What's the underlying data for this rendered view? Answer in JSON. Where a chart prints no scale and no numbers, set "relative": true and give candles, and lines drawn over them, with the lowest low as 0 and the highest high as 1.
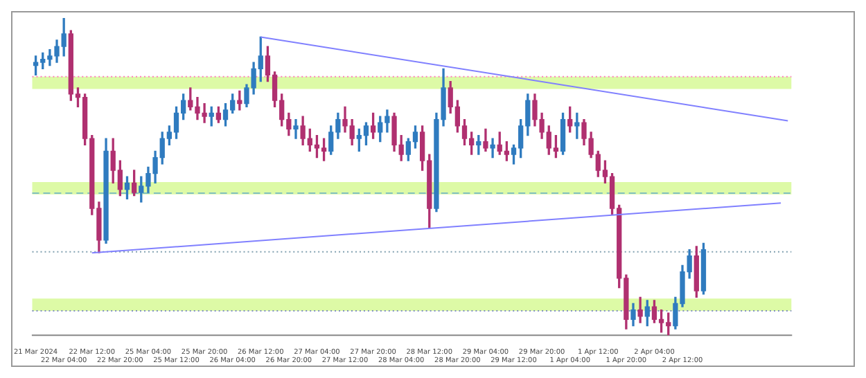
{
  "chart_data": {
    "type": "candlestick",
    "relative": true,
    "categories": [
      "21 Mar 2024",
      null,
      null,
      null,
      "22 Mar 04:00",
      null,
      null,
      null,
      "22 Mar 12:00",
      null,
      null,
      null,
      "22 Mar 20:00",
      null,
      null,
      null,
      "25 Mar 04:00",
      null,
      null,
      null,
      "25 Mar 12:00",
      null,
      null,
      null,
      "25 Mar 20:00",
      null,
      null,
      null,
      "26 Mar 04:00",
      null,
      null,
      null,
      "26 Mar 12:00",
      null,
      null,
      null,
      "26 Mar 20:00",
      null,
      null,
      null,
      "27 Mar 04:00",
      null,
      null,
      null,
      "27 Mar 12:00",
      null,
      null,
      null,
      "27 Mar 20:00",
      null,
      null,
      null,
      "28 Mar 04:00",
      null,
      null,
      null,
      "28 Mar 12:00",
      null,
      null,
      null,
      "28 Mar 20:00",
      null,
      null,
      null,
      "29 Mar 04:00",
      null,
      null,
      null,
      "29 Mar 12:00",
      null,
      null,
      null,
      "29 Mar 20:00",
      null,
      null,
      null,
      "1 Apr 04:00",
      null,
      null,
      null,
      "1 Apr 12:00",
      null,
      null,
      null,
      "1 Apr 20:00",
      null,
      null,
      null,
      "2 Apr 04:00",
      null,
      null,
      null,
      "2 Apr 12:00",
      null,
      null,
      null,
      null,
      null,
      null,
      null,
      null,
      null,
      null,
      null,
      null,
      null,
      null,
      null
    ],
    "colors": [
      "#2f7bbf",
      "#2f7bbf",
      "#2f7bbf",
      "#2f7bbf",
      "#2f7bbf",
      "#b03070",
      "#b03070",
      "#b03070",
      "#b03070",
      "#b03070",
      "#2f7bbf",
      "#b03070",
      "#b03070",
      "#2f7bbf",
      "#b03070",
      "#2f7bbf",
      "#2f7bbf",
      "#2f7bbf",
      "#2f7bbf",
      "#2f7bbf",
      "#2f7bbf",
      "#2f7bbf",
      "#b03070",
      "#b03070",
      "#b03070",
      "#2f7bbf",
      "#b03070",
      "#2f7bbf",
      "#2f7bbf",
      "#b03070",
      "#2f7bbf",
      "#2f7bbf",
      "#2f7bbf",
      "#b03070",
      "#b03070",
      "#b03070",
      "#b03070",
      "#2f7bbf",
      "#b03070",
      "#b03070",
      "#b03070",
      "#b03070",
      "#2f7bbf",
      "#2f7bbf",
      "#b03070",
      "#b03070",
      "#2f7bbf",
      "#2f7bbf",
      "#b03070",
      "#2f7bbf",
      "#2f7bbf",
      "#b03070",
      "#b03070",
      "#2f7bbf",
      "#2f7bbf",
      "#b03070",
      "#b03070",
      "#2f7bbf",
      "#2f7bbf",
      "#b03070",
      "#b03070",
      "#b03070",
      "#b03070",
      "#2f7bbf",
      "#b03070",
      "#2f7bbf",
      "#b03070",
      "#b03070",
      "#2f7bbf",
      "#2f7bbf",
      "#2f7bbf",
      "#b03070",
      "#b03070",
      "#b03070",
      "#b03070",
      "#2f7bbf",
      "#b03070",
      "#2f7bbf",
      "#b03070",
      "#b03070",
      "#b03070",
      "#b03070",
      "#b03070",
      "#b03070",
      "#b03070",
      "#2f7bbf",
      "#b03070",
      "#2f7bbf",
      "#b03070",
      "#b03070",
      "#b03070",
      "#2f7bbf",
      "#2f7bbf",
      "#2f7bbf",
      "#b03070",
      "#2f7bbf",
      null,
      null,
      null,
      null,
      null,
      null,
      null,
      null,
      null,
      null,
      null,
      null
    ],
    "ohlc": [
      [
        0.85,
        0.88,
        0.82,
        0.86
      ],
      [
        0.86,
        0.89,
        0.84,
        0.87
      ],
      [
        0.87,
        0.9,
        0.85,
        0.88
      ],
      [
        0.88,
        0.93,
        0.86,
        0.91
      ],
      [
        0.91,
        1.0,
        0.88,
        0.95
      ],
      [
        0.95,
        0.96,
        0.74,
        0.76
      ],
      [
        0.76,
        0.78,
        0.72,
        0.75
      ],
      [
        0.75,
        0.76,
        0.6,
        0.62
      ],
      [
        0.62,
        0.63,
        0.38,
        0.4
      ],
      [
        0.4,
        0.42,
        0.26,
        0.3
      ],
      [
        0.3,
        0.62,
        0.29,
        0.58
      ],
      [
        0.58,
        0.62,
        0.48,
        0.52
      ],
      [
        0.52,
        0.55,
        0.44,
        0.46
      ],
      [
        0.46,
        0.5,
        0.43,
        0.48
      ],
      [
        0.48,
        0.52,
        0.44,
        0.45
      ],
      [
        0.45,
        0.5,
        0.42,
        0.47
      ],
      [
        0.47,
        0.53,
        0.45,
        0.51
      ],
      [
        0.51,
        0.58,
        0.48,
        0.56
      ],
      [
        0.56,
        0.64,
        0.54,
        0.62
      ],
      [
        0.62,
        0.66,
        0.6,
        0.64
      ],
      [
        0.64,
        0.72,
        0.62,
        0.7
      ],
      [
        0.7,
        0.76,
        0.68,
        0.74
      ],
      [
        0.74,
        0.78,
        0.71,
        0.72
      ],
      [
        0.72,
        0.75,
        0.68,
        0.7
      ],
      [
        0.7,
        0.73,
        0.67,
        0.69
      ],
      [
        0.69,
        0.72,
        0.66,
        0.7
      ],
      [
        0.7,
        0.72,
        0.67,
        0.68
      ],
      [
        0.68,
        0.73,
        0.66,
        0.71
      ],
      [
        0.71,
        0.76,
        0.7,
        0.74
      ],
      [
        0.74,
        0.77,
        0.71,
        0.73
      ],
      [
        0.73,
        0.79,
        0.72,
        0.78
      ],
      [
        0.78,
        0.86,
        0.76,
        0.84
      ],
      [
        0.84,
        0.94,
        0.8,
        0.88
      ],
      [
        0.88,
        0.91,
        0.8,
        0.82
      ],
      [
        0.82,
        0.83,
        0.72,
        0.74
      ],
      [
        0.74,
        0.76,
        0.66,
        0.68
      ],
      [
        0.68,
        0.7,
        0.63,
        0.65
      ],
      [
        0.65,
        0.68,
        0.62,
        0.66
      ],
      [
        0.66,
        0.69,
        0.6,
        0.62
      ],
      [
        0.62,
        0.65,
        0.58,
        0.6
      ],
      [
        0.6,
        0.63,
        0.56,
        0.59
      ],
      [
        0.59,
        0.62,
        0.55,
        0.58
      ],
      [
        0.58,
        0.66,
        0.57,
        0.64
      ],
      [
        0.64,
        0.7,
        0.62,
        0.68
      ],
      [
        0.68,
        0.72,
        0.64,
        0.66
      ],
      [
        0.66,
        0.68,
        0.6,
        0.62
      ],
      [
        0.62,
        0.65,
        0.58,
        0.63
      ],
      [
        0.63,
        0.67,
        0.6,
        0.66
      ],
      [
        0.66,
        0.7,
        0.62,
        0.64
      ],
      [
        0.64,
        0.69,
        0.61,
        0.67
      ],
      [
        0.67,
        0.71,
        0.64,
        0.69
      ],
      [
        0.69,
        0.7,
        0.58,
        0.6
      ],
      [
        0.6,
        0.63,
        0.55,
        0.57
      ],
      [
        0.57,
        0.62,
        0.55,
        0.61
      ],
      [
        0.61,
        0.66,
        0.59,
        0.64
      ],
      [
        0.64,
        0.66,
        0.52,
        0.55
      ],
      [
        0.55,
        0.57,
        0.34,
        0.4
      ],
      [
        0.4,
        0.7,
        0.39,
        0.68
      ],
      [
        0.68,
        0.84,
        0.66,
        0.78
      ],
      [
        0.78,
        0.8,
        0.7,
        0.72
      ],
      [
        0.72,
        0.74,
        0.64,
        0.66
      ],
      [
        0.66,
        0.68,
        0.6,
        0.62
      ],
      [
        0.62,
        0.64,
        0.57,
        0.6
      ],
      [
        0.6,
        0.63,
        0.57,
        0.61
      ],
      [
        0.61,
        0.65,
        0.58,
        0.59
      ],
      [
        0.59,
        0.62,
        0.56,
        0.6
      ],
      [
        0.6,
        0.64,
        0.57,
        0.58
      ],
      [
        0.58,
        0.61,
        0.55,
        0.57
      ],
      [
        0.57,
        0.6,
        0.54,
        0.59
      ],
      [
        0.59,
        0.68,
        0.56,
        0.66
      ],
      [
        0.66,
        0.76,
        0.63,
        0.74
      ],
      [
        0.74,
        0.76,
        0.66,
        0.68
      ],
      [
        0.68,
        0.7,
        0.62,
        0.64
      ],
      [
        0.64,
        0.66,
        0.57,
        0.59
      ],
      [
        0.59,
        0.63,
        0.56,
        0.58
      ],
      [
        0.58,
        0.7,
        0.57,
        0.68
      ],
      [
        0.68,
        0.72,
        0.64,
        0.66
      ],
      [
        0.66,
        0.7,
        0.62,
        0.67
      ],
      [
        0.67,
        0.68,
        0.6,
        0.62
      ],
      [
        0.62,
        0.64,
        0.56,
        0.57
      ],
      [
        0.57,
        0.58,
        0.5,
        0.52
      ],
      [
        0.52,
        0.55,
        0.48,
        0.5
      ],
      [
        0.5,
        0.51,
        0.38,
        0.4
      ],
      [
        0.4,
        0.41,
        0.15,
        0.18
      ],
      [
        0.18,
        0.19,
        0.02,
        0.05
      ],
      [
        0.05,
        0.1,
        0.03,
        0.08
      ],
      [
        0.08,
        0.12,
        0.04,
        0.06
      ],
      [
        0.06,
        0.11,
        0.03,
        0.09
      ],
      [
        0.09,
        0.11,
        0.04,
        0.05
      ],
      [
        0.05,
        0.08,
        0.01,
        0.04
      ],
      [
        0.04,
        0.07,
        0.0,
        0.03
      ],
      [
        0.03,
        0.12,
        0.02,
        0.1
      ],
      [
        0.1,
        0.22,
        0.09,
        0.2
      ],
      [
        0.2,
        0.27,
        0.18,
        0.25
      ],
      [
        0.25,
        0.28,
        0.12,
        0.14
      ],
      [
        0.14,
        0.29,
        0.13,
        0.27
      ],
      null,
      null,
      null,
      null,
      null,
      null,
      null,
      null,
      null,
      null,
      null,
      null
    ],
    "series": [
      {
        "type": "line",
        "color": "#8080ff",
        "values": [
          null,
          null,
          null,
          null,
          null,
          null,
          null,
          null,
          null,
          null,
          null,
          null,
          null,
          null,
          null,
          null,
          null,
          null,
          null,
          null,
          null,
          null,
          null,
          null,
          null,
          null,
          null,
          null,
          null,
          null,
          null,
          null,
          0.94,
          null,
          null,
          null,
          null,
          null,
          null,
          null,
          null,
          null,
          null,
          null,
          null,
          null,
          null,
          null,
          null,
          null,
          null,
          null,
          null,
          null,
          null,
          null,
          null,
          null,
          null,
          null,
          null,
          null,
          null,
          null,
          null,
          null,
          null,
          null,
          null,
          null,
          null,
          null,
          null,
          null,
          null,
          null,
          null,
          null,
          null,
          null,
          null,
          null,
          null,
          null,
          null,
          null,
          null,
          null,
          null,
          null,
          null,
          null,
          null,
          null,
          null,
          null,
          null,
          null,
          null,
          null,
          null,
          null,
          null,
          null,
          null,
          null,
          null,
          0.676
        ]
      },
      {
        "type": "line",
        "color": "#8080ff",
        "values": [
          null,
          null,
          null,
          null,
          null,
          null,
          null,
          null,
          0.26,
          null,
          null,
          null,
          null,
          null,
          null,
          null,
          null,
          null,
          null,
          null,
          null,
          null,
          null,
          null,
          null,
          null,
          null,
          null,
          null,
          null,
          null,
          null,
          null,
          null,
          null,
          null,
          null,
          null,
          null,
          null,
          null,
          null,
          null,
          null,
          null,
          null,
          null,
          null,
          null,
          null,
          null,
          null,
          null,
          null,
          null,
          null,
          null,
          null,
          null,
          null,
          null,
          null,
          null,
          null,
          null,
          null,
          null,
          null,
          null,
          null,
          null,
          null,
          null,
          null,
          null,
          null,
          null,
          null,
          null,
          null,
          null,
          null,
          null,
          null,
          null,
          null,
          null,
          null,
          null,
          null,
          null,
          null,
          null,
          null,
          null,
          null,
          null,
          null,
          null,
          null,
          null,
          null,
          null,
          null,
          null,
          null,
          0.417,
          null
        ]
      }
    ],
    "bands": [
      {
        "axis": "y",
        "from": 0.776,
        "to": 0.815,
        "color": "#ddfaa6"
      },
      {
        "axis": "y",
        "from": 0.444,
        "to": 0.483,
        "color": "#ddfaa6"
      },
      {
        "axis": "y",
        "from": 0.077,
        "to": 0.116,
        "color": "#ddfaa6"
      }
    ],
    "ref_lines": [
      {
        "axis": "y",
        "value": 0.815,
        "color": "#ff80c0",
        "line_style": "dotted"
      },
      {
        "axis": "y",
        "value": 0.448,
        "color": "#80c0c0",
        "line_style": "dashed"
      },
      {
        "axis": "y",
        "value": 0.263,
        "color": "#80a0b0",
        "line_style": "dotted"
      },
      {
        "axis": "y",
        "value": 0.077,
        "color": "#8090c0",
        "line_style": "dotted"
      }
    ]
  }
}
